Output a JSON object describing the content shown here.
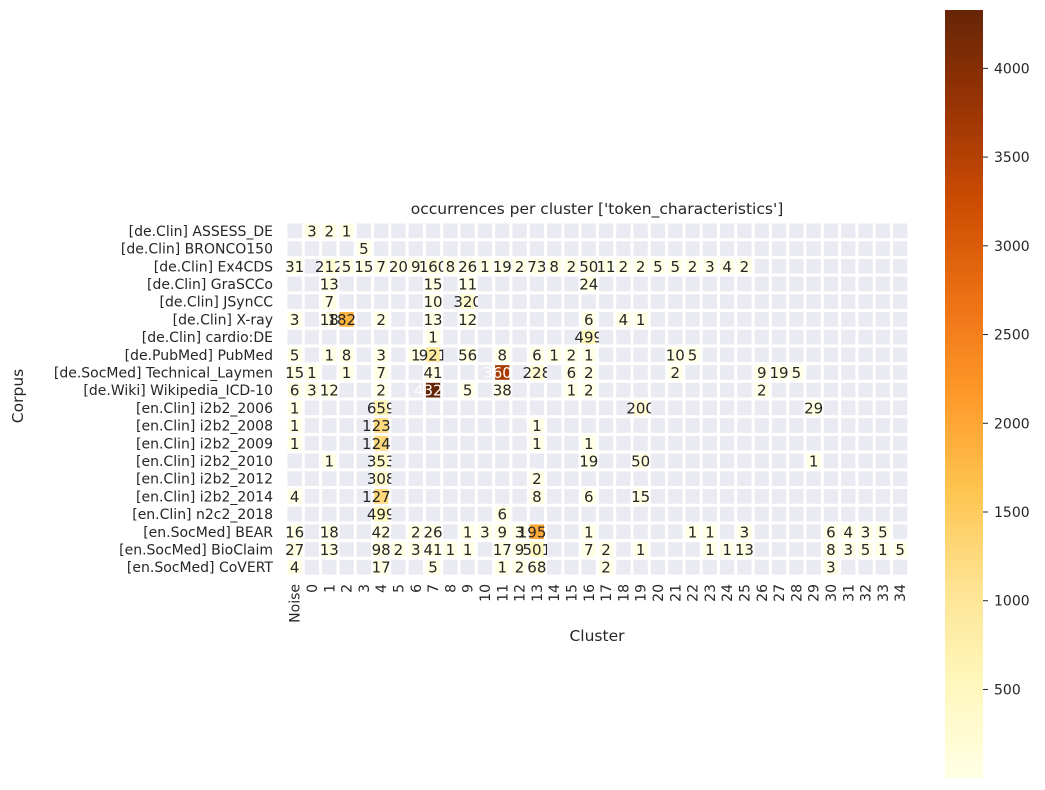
{
  "chart_data": {
    "type": "heatmap",
    "title": "occurrences per cluster ['token_characteristics']",
    "xlabel": "Cluster",
    "ylabel": "Corpus",
    "x_categories": [
      "Noise",
      "0",
      "1",
      "2",
      "3",
      "4",
      "5",
      "6",
      "7",
      "8",
      "9",
      "10",
      "11",
      "12",
      "13",
      "14",
      "15",
      "16",
      "17",
      "18",
      "19",
      "20",
      "21",
      "22",
      "23",
      "24",
      "25",
      "26",
      "27",
      "28",
      "29",
      "30",
      "31",
      "32",
      "33",
      "34"
    ],
    "y_categories": [
      "[de.Clin] ASSESS_DE",
      "[de.Clin] BRONCO150",
      "[de.Clin] Ex4CDS",
      "[de.Clin] GraSCCo",
      "[de.Clin] JSynCC",
      "[de.Clin] X-ray",
      "[de.Clin] cardio:DE",
      "[de.PubMed] PubMed",
      "[de.SocMed] Technical_Laymen",
      "[de.Wiki] Wikipedia_ICD-10",
      "[en.Clin] i2b2_2006",
      "[en.Clin] i2b2_2008",
      "[en.Clin] i2b2_2009",
      "[en.Clin] i2b2_2010",
      "[en.Clin] i2b2_2012",
      "[en.Clin] i2b2_2014",
      "[en.Clin] n2c2_2018",
      "[en.SocMed] BEAR",
      "[en.SocMed] BioClaim",
      "[en.SocMed] CoVERT"
    ],
    "values": [
      [
        null,
        3,
        2,
        1,
        null,
        null,
        null,
        null,
        null,
        null,
        null,
        null,
        null,
        null,
        null,
        null,
        null,
        null,
        null,
        null,
        null,
        null,
        null,
        null,
        null,
        null,
        null,
        null,
        null,
        null,
        null,
        null,
        null,
        null,
        null,
        null
      ],
      [
        null,
        null,
        null,
        null,
        5,
        null,
        null,
        null,
        null,
        null,
        null,
        null,
        null,
        null,
        null,
        null,
        null,
        null,
        null,
        null,
        null,
        null,
        null,
        null,
        null,
        null,
        null,
        null,
        null,
        null,
        null,
        null,
        null,
        null,
        null,
        null
      ],
      [
        31,
        null,
        212,
        5,
        15,
        7,
        20,
        9,
        160,
        8,
        26,
        1,
        19,
        2,
        73,
        8,
        2,
        50,
        11,
        2,
        2,
        5,
        5,
        2,
        3,
        4,
        2,
        null,
        null,
        null,
        null,
        null,
        null,
        null,
        null,
        null
      ],
      [
        null,
        null,
        13,
        null,
        null,
        null,
        null,
        null,
        15,
        null,
        11,
        null,
        null,
        null,
        null,
        null,
        null,
        24,
        null,
        null,
        null,
        null,
        null,
        null,
        null,
        null,
        null,
        null,
        null,
        null,
        null,
        null,
        null,
        null,
        null,
        null
      ],
      [
        null,
        null,
        7,
        null,
        null,
        null,
        null,
        null,
        10,
        null,
        320,
        null,
        null,
        null,
        null,
        null,
        null,
        null,
        null,
        null,
        null,
        null,
        null,
        null,
        null,
        null,
        null,
        null,
        null,
        null,
        null,
        null,
        null,
        null,
        null,
        null
      ],
      [
        3,
        null,
        18,
        1825,
        null,
        2,
        null,
        null,
        13,
        null,
        12,
        null,
        null,
        null,
        null,
        null,
        null,
        6,
        null,
        4,
        1,
        null,
        null,
        null,
        null,
        null,
        null,
        null,
        null,
        null,
        null,
        null,
        null,
        null,
        null,
        null
      ],
      [
        null,
        null,
        null,
        null,
        null,
        null,
        null,
        null,
        1,
        null,
        null,
        null,
        null,
        null,
        null,
        null,
        null,
        499,
        null,
        null,
        null,
        null,
        null,
        null,
        null,
        null,
        null,
        null,
        null,
        null,
        null,
        null,
        null,
        null,
        null,
        null
      ],
      [
        5,
        null,
        1,
        8,
        null,
        3,
        null,
        1,
        921,
        null,
        56,
        null,
        8,
        null,
        6,
        1,
        2,
        1,
        null,
        null,
        null,
        null,
        10,
        5,
        null,
        null,
        null,
        null,
        null,
        null,
        null,
        null,
        null,
        null,
        null,
        null
      ],
      [
        15,
        1,
        null,
        1,
        null,
        7,
        null,
        null,
        41,
        null,
        null,
        null,
        3606,
        null,
        228,
        null,
        6,
        2,
        null,
        null,
        null,
        null,
        2,
        null,
        null,
        null,
        null,
        9,
        19,
        5,
        null,
        null,
        null,
        null,
        null,
        null
      ],
      [
        6,
        3,
        12,
        null,
        null,
        2,
        null,
        null,
        4329,
        null,
        5,
        null,
        38,
        null,
        null,
        null,
        1,
        2,
        null,
        null,
        null,
        null,
        null,
        null,
        null,
        null,
        null,
        2,
        null,
        null,
        null,
        null,
        null,
        null,
        null,
        null
      ],
      [
        1,
        null,
        null,
        null,
        null,
        659,
        null,
        null,
        null,
        null,
        null,
        null,
        null,
        null,
        null,
        null,
        null,
        null,
        null,
        null,
        200,
        null,
        null,
        null,
        null,
        null,
        null,
        null,
        null,
        null,
        29,
        null,
        null,
        null,
        null,
        null
      ],
      [
        1,
        null,
        null,
        null,
        null,
        1235,
        null,
        null,
        null,
        null,
        null,
        null,
        null,
        null,
        1,
        null,
        null,
        null,
        null,
        null,
        null,
        null,
        null,
        null,
        null,
        null,
        null,
        null,
        null,
        null,
        null,
        null,
        null,
        null,
        null,
        null
      ],
      [
        1,
        null,
        null,
        null,
        null,
        1246,
        null,
        null,
        null,
        null,
        null,
        null,
        null,
        null,
        1,
        null,
        null,
        1,
        null,
        null,
        null,
        null,
        null,
        null,
        null,
        null,
        null,
        null,
        null,
        null,
        null,
        null,
        null,
        null,
        null,
        null
      ],
      [
        null,
        null,
        1,
        null,
        null,
        353,
        null,
        null,
        null,
        null,
        null,
        null,
        null,
        null,
        null,
        null,
        null,
        19,
        null,
        null,
        50,
        null,
        null,
        null,
        null,
        null,
        null,
        null,
        null,
        null,
        1,
        null,
        null,
        null,
        null,
        null
      ],
      [
        null,
        null,
        null,
        null,
        null,
        308,
        null,
        null,
        null,
        null,
        null,
        null,
        null,
        null,
        2,
        null,
        null,
        null,
        null,
        null,
        null,
        null,
        null,
        null,
        null,
        null,
        null,
        null,
        null,
        null,
        null,
        null,
        null,
        null,
        null,
        null
      ],
      [
        4,
        null,
        null,
        null,
        null,
        1271,
        null,
        null,
        null,
        null,
        null,
        null,
        null,
        null,
        8,
        null,
        null,
        6,
        null,
        null,
        15,
        null,
        null,
        null,
        null,
        null,
        null,
        null,
        null,
        null,
        null,
        null,
        null,
        null,
        null,
        null
      ],
      [
        null,
        null,
        null,
        null,
        null,
        499,
        null,
        null,
        null,
        null,
        null,
        null,
        6,
        null,
        null,
        null,
        null,
        null,
        null,
        null,
        null,
        null,
        null,
        null,
        null,
        null,
        null,
        null,
        null,
        null,
        null,
        null,
        null,
        null,
        null,
        null
      ],
      [
        16,
        null,
        18,
        null,
        null,
        42,
        null,
        2,
        26,
        null,
        1,
        3,
        9,
        3,
        1956,
        null,
        null,
        1,
        null,
        null,
        null,
        null,
        null,
        1,
        1,
        null,
        3,
        null,
        null,
        null,
        null,
        6,
        4,
        3,
        5,
        null
      ],
      [
        27,
        null,
        13,
        null,
        null,
        98,
        2,
        3,
        41,
        1,
        1,
        null,
        17,
        9,
        501,
        null,
        null,
        7,
        2,
        null,
        1,
        null,
        null,
        null,
        1,
        1,
        13,
        null,
        null,
        null,
        null,
        8,
        3,
        5,
        1,
        5
      ],
      [
        4,
        null,
        null,
        null,
        null,
        17,
        null,
        null,
        5,
        null,
        null,
        null,
        1,
        2,
        68,
        null,
        null,
        null,
        2,
        null,
        null,
        null,
        null,
        null,
        null,
        null,
        null,
        null,
        null,
        null,
        null,
        3,
        null,
        null,
        null,
        null
      ]
    ],
    "colorbar": {
      "colormap": "YlOrBr",
      "range": [
        1,
        4329
      ],
      "ticks": [
        500,
        1000,
        1500,
        2000,
        2500,
        3000,
        3500,
        4000
      ]
    },
    "colors": {
      "empty_cell": "#eaeaf2",
      "grid": "#ffffff"
    }
  }
}
